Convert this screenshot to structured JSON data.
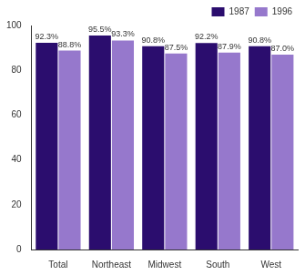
{
  "chart_data": {
    "type": "bar",
    "categories": [
      "Total",
      "Northeast",
      "Midwest",
      "South",
      "West"
    ],
    "series": [
      {
        "name": "1987",
        "color": "#2b0d6e",
        "values": [
          92.3,
          95.5,
          90.8,
          92.2,
          90.8
        ],
        "value_labels": [
          "92.3%",
          "95.5%",
          "90.8%",
          "92.2%",
          "90.8%"
        ]
      },
      {
        "name": "1996",
        "color": "#9678cc",
        "values": [
          88.8,
          93.3,
          87.5,
          87.9,
          87.0
        ],
        "value_labels": [
          "88.8%",
          "93.3%",
          "87.5%",
          "87.9%",
          "87.0%"
        ]
      }
    ],
    "ylim": [
      0,
      100
    ],
    "yticks": [
      0,
      20,
      40,
      60,
      80,
      100
    ],
    "grid": false,
    "legend": "top-right",
    "data_labels": true
  }
}
